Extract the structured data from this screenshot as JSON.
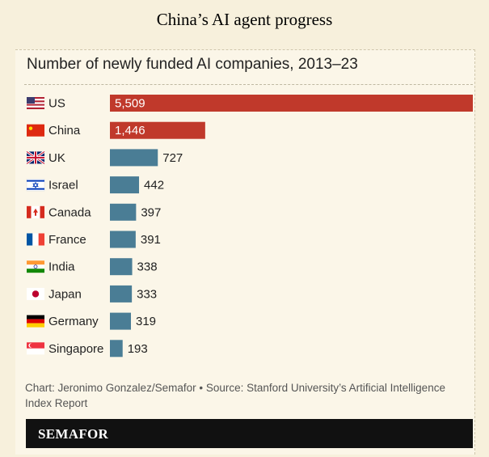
{
  "page": {
    "title": "China’s AI agent progress"
  },
  "chart_data": {
    "type": "bar",
    "orientation": "horizontal",
    "title": "Number of newly funded AI companies, 2013–23",
    "categories": [
      "US",
      "China",
      "UK",
      "Israel",
      "Canada",
      "France",
      "India",
      "Japan",
      "Germany",
      "Singapore"
    ],
    "values": [
      5509,
      1446,
      727,
      442,
      397,
      391,
      338,
      333,
      319,
      193
    ],
    "value_labels": [
      "5,509",
      "1,446",
      "727",
      "442",
      "397",
      "391",
      "338",
      "333",
      "319",
      "193"
    ],
    "highlight_colors": [
      "#c0392b",
      "#c0392b",
      "#4a7d95",
      "#4a7d95",
      "#4a7d95",
      "#4a7d95",
      "#4a7d95",
      "#4a7d95",
      "#4a7d95",
      "#4a7d95"
    ],
    "flag_icons": [
      "us-flag-icon",
      "china-flag-icon",
      "uk-flag-icon",
      "israel-flag-icon",
      "canada-flag-icon",
      "france-flag-icon",
      "india-flag-icon",
      "japan-flag-icon",
      "germany-flag-icon",
      "singapore-flag-icon"
    ],
    "xlim": [
      0,
      5509
    ],
    "grid": false,
    "legend": "none",
    "source": "Chart: Jeronimo Gonzalez/Semafor • Source: Stanford University’s Artificial Intelligence Index Report"
  },
  "brand": {
    "name": "SEMAFOR"
  },
  "colors": {
    "red": "#c0392b",
    "blue": "#4a7d95",
    "background": "#f7f0dc"
  }
}
